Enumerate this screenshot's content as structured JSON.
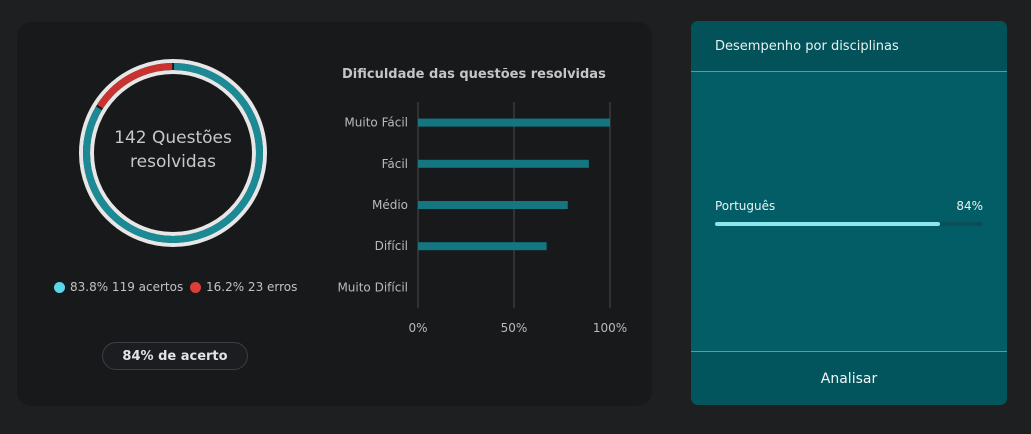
{
  "summary": {
    "questions_count": "142",
    "questions_line1": "142 Questões",
    "questions_line2": "resolvidas",
    "correct_legend": "83.8% 119 acertos",
    "wrong_legend": "16.2% 23 erros",
    "accuracy_label": "84% de acerto",
    "correct_fraction": 0.838,
    "wrong_fraction": 0.162,
    "colors": {
      "correct": "#1b8a94",
      "wrong": "#c8322f",
      "ring": "#e7e7e7",
      "legend_correct_dot": "#5ad8e8",
      "legend_wrong_dot": "#e03c3a"
    }
  },
  "chart_data": {
    "type": "bar",
    "orientation": "horizontal",
    "title": "Dificuldade das questões resolvidas",
    "categories": [
      "Muito Fácil",
      "Fácil",
      "Médio",
      "Difícil",
      "Muito Difícil"
    ],
    "values": [
      100,
      89,
      78,
      67,
      0
    ],
    "xlim": [
      0,
      100
    ],
    "xticks": [
      "0%",
      "50%",
      "100%"
    ],
    "xtick_values": [
      0,
      50,
      100
    ],
    "grid": true,
    "color": "#137680"
  },
  "disciplines": {
    "title": "Desempenho por disciplinas",
    "items": [
      {
        "name": "Português",
        "percent_label": "84%",
        "fraction": 0.84
      }
    ],
    "analyze_label": "Analisar"
  }
}
